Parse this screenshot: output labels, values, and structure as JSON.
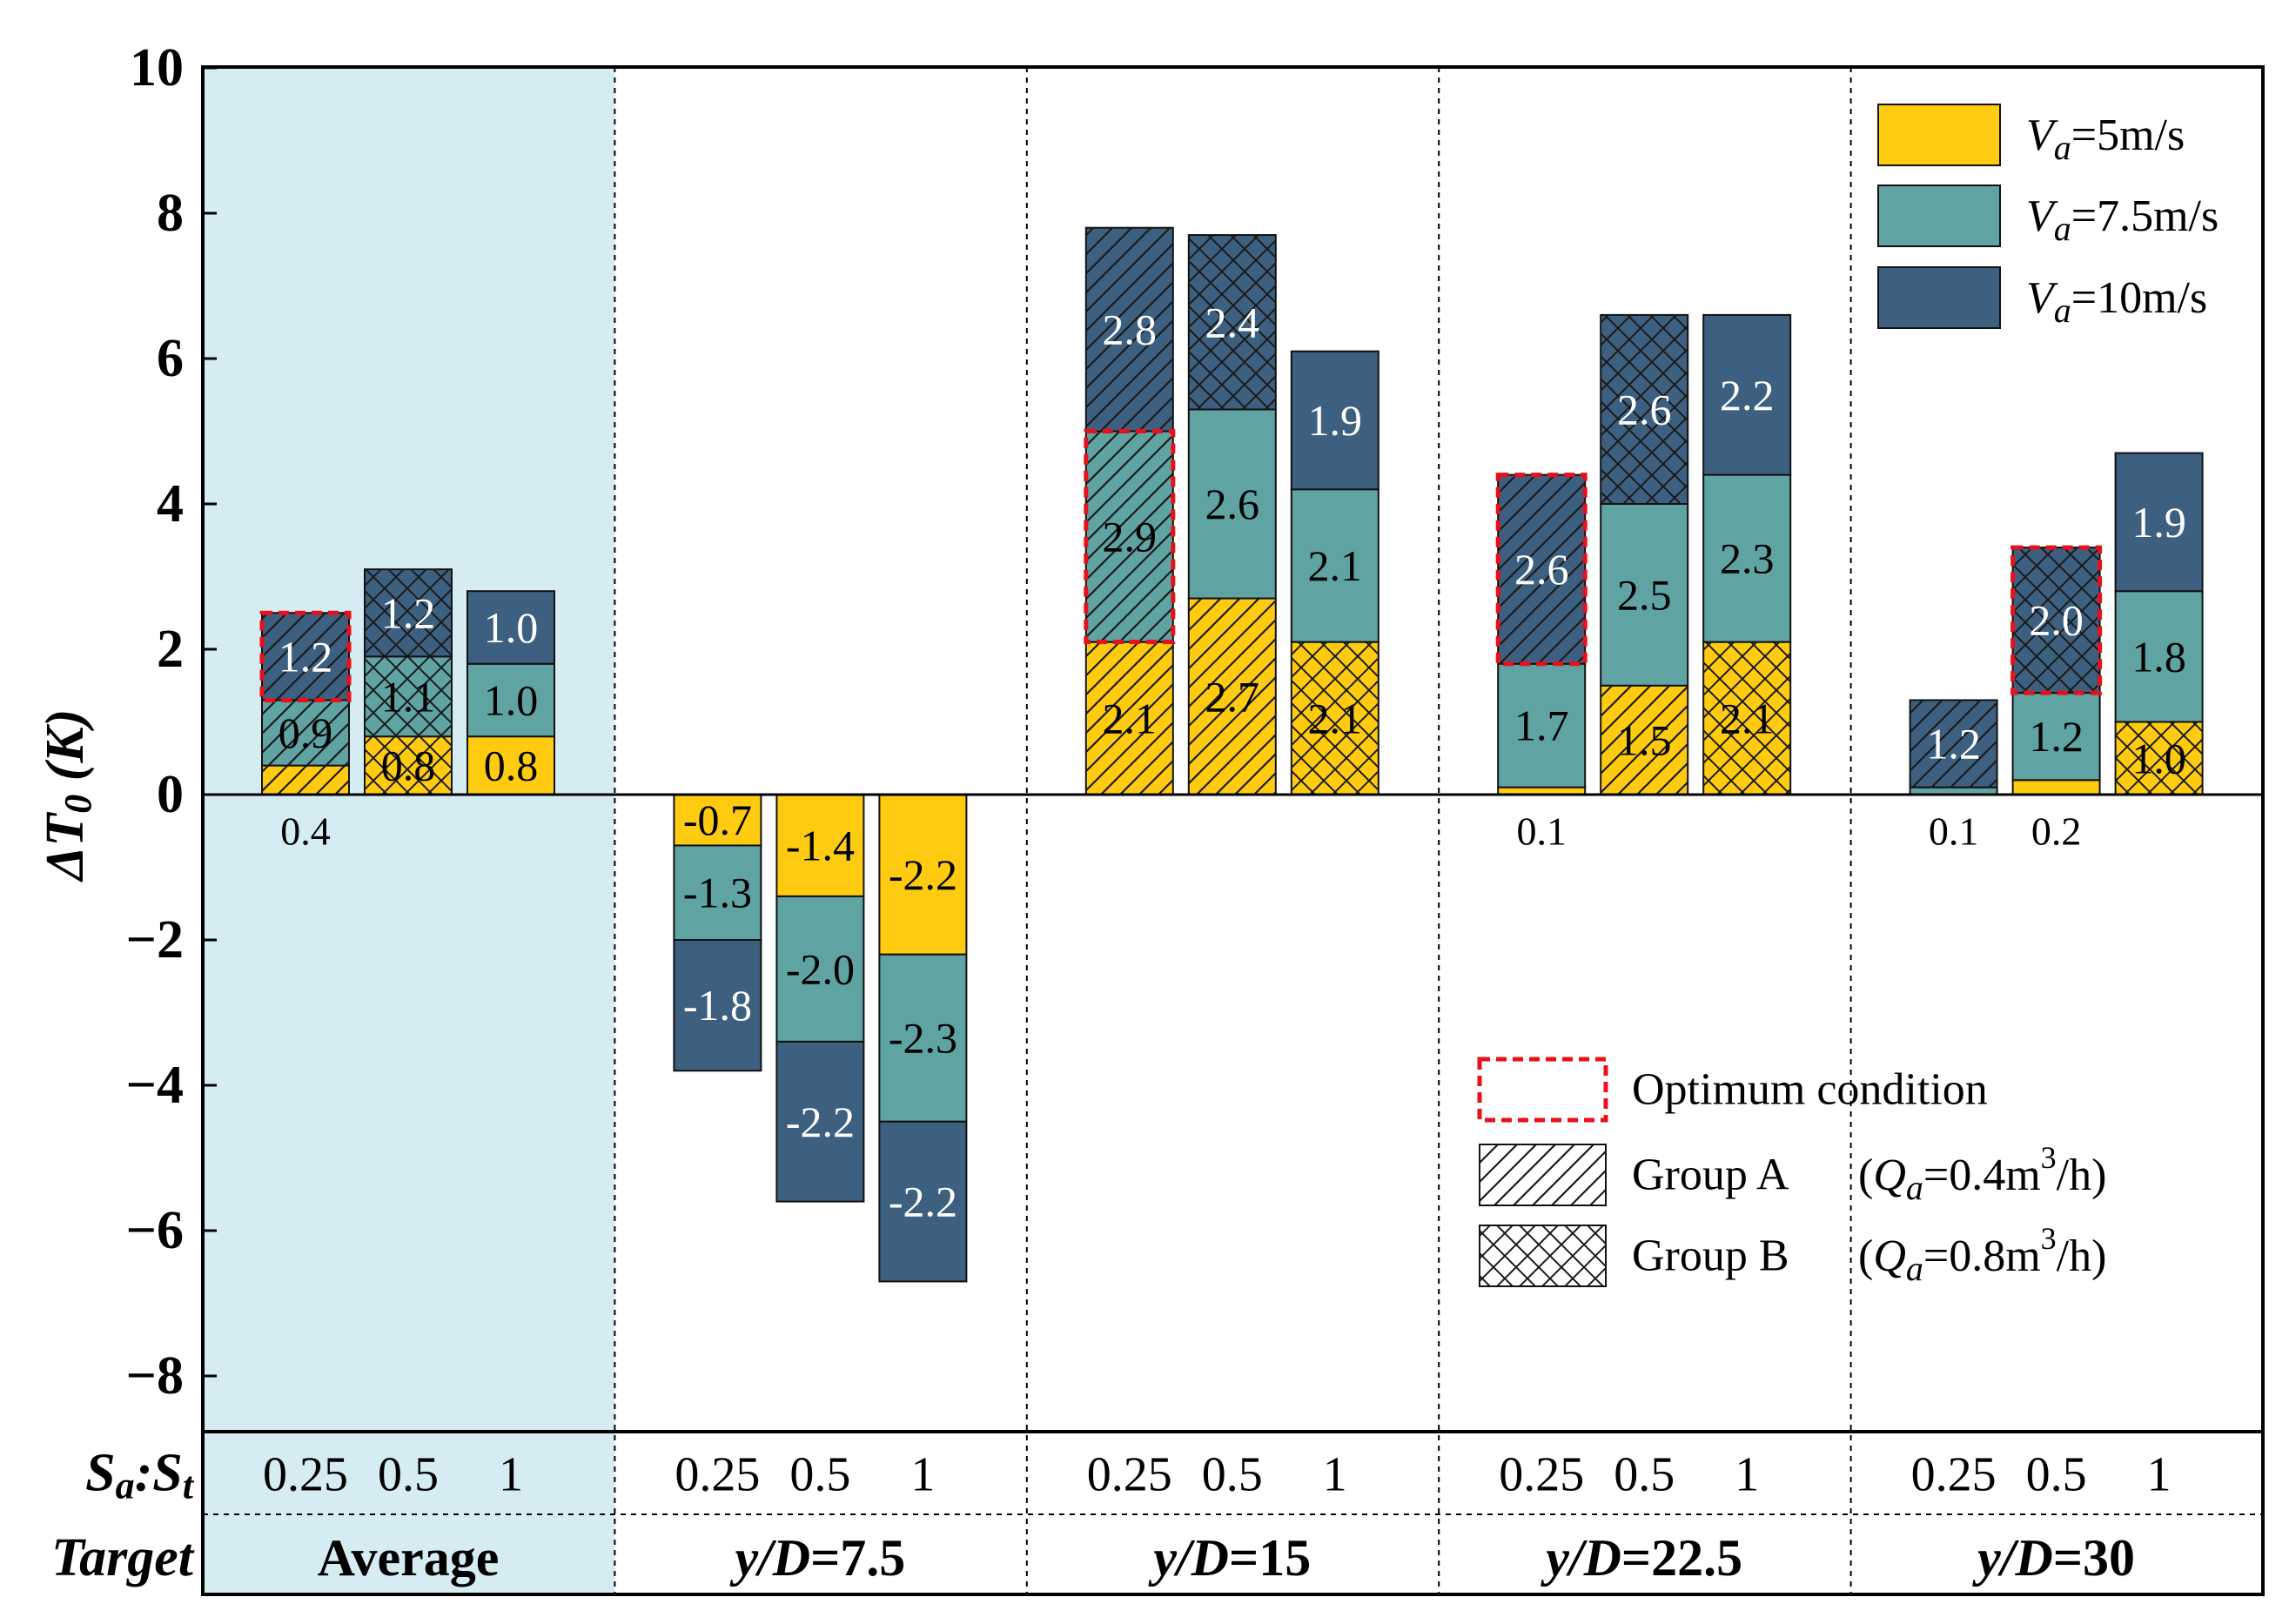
{
  "chart_data": {
    "type": "bar",
    "subtype": "stacked",
    "ylabel": "ΔT0 (K)",
    "ylabel_main": "ΔT",
    "ylabel_sub": "0",
    "ylabel_unit": " (K)",
    "ylim": [
      -8.8,
      10
    ],
    "yticks": [
      10,
      8,
      6,
      4,
      2,
      0,
      -2,
      -4,
      -6,
      -8
    ],
    "ytick_labels": [
      "10",
      "8",
      "6",
      "4",
      "2",
      "0",
      "−2",
      "−4",
      "−6",
      "−8"
    ],
    "colors": {
      "v5": "#FFCB10",
      "v7": "#5FA3A3",
      "v10": "#3D6080",
      "highlight_bg": "#D6ECF3",
      "optimum": "#E8101A"
    },
    "rows": {
      "ratio_label_main": "S",
      "ratio_label_sub1": "a",
      "ratio_sep": ":",
      "ratio_label_sub2": "t",
      "target_label": "Target"
    },
    "series": [
      {
        "name": "Va=5m/s",
        "base": "V",
        "sub": "a",
        "rest": "=5m/s"
      },
      {
        "name": "Va=7.5m/s",
        "base": "V",
        "sub": "a",
        "rest": "=7.5m/s"
      },
      {
        "name": "Va=10m/s",
        "base": "V",
        "sub": "a",
        "rest": "=10m/s"
      }
    ],
    "legend2": {
      "optimum": "Optimum condition",
      "groupA": "Group A",
      "groupA_q": "(Qa=0.4m³/h)",
      "groupA_parts": [
        "(",
        "Q",
        "a",
        "=0.4m",
        "3",
        "/h)"
      ],
      "groupB": "Group B",
      "groupB_q": "(Qa=0.8m³/h)",
      "groupB_parts": [
        "(",
        "Q",
        "a",
        "=0.8m",
        "3",
        "/h)"
      ]
    },
    "groups": [
      {
        "name": "Average",
        "label_prefix": "",
        "label_value": "Average",
        "bars": [
          {
            "ratio": "0.25",
            "values": [
              0.4,
              0.9,
              1.2
            ],
            "labels": [
              "0.4",
              "0.9",
              "1.2"
            ],
            "pattern": "A",
            "optimum": "v10"
          },
          {
            "ratio": "0.5",
            "values": [
              0.8,
              1.1,
              1.2
            ],
            "labels": [
              "0.8",
              "1.1",
              "1.2"
            ],
            "pattern": "B",
            "optimum": ""
          },
          {
            "ratio": "1",
            "values": [
              0.8,
              1.0,
              1.0
            ],
            "labels": [
              "0.8",
              "1.0",
              "1.0"
            ],
            "pattern": "none",
            "optimum": ""
          }
        ]
      },
      {
        "name": "y/D=7.5",
        "label_prefix": "y/D",
        "label_value": "=7.5",
        "bars": [
          {
            "ratio": "0.25",
            "values": [
              -0.7,
              -1.3,
              -1.8
            ],
            "labels": [
              "-0.7",
              "-1.3",
              "-1.8"
            ],
            "pattern": "none",
            "optimum": ""
          },
          {
            "ratio": "0.5",
            "values": [
              -1.4,
              -2.0,
              -2.2
            ],
            "labels": [
              "-1.4",
              "-2.0",
              "-2.2"
            ],
            "pattern": "none",
            "optimum": ""
          },
          {
            "ratio": "1",
            "values": [
              -2.2,
              -2.3,
              -2.2
            ],
            "labels": [
              "-2.2",
              "-2.3",
              "-2.2"
            ],
            "pattern": "none",
            "optimum": ""
          }
        ]
      },
      {
        "name": "y/D=15",
        "label_prefix": "y/D",
        "label_value": "=15",
        "bars": [
          {
            "ratio": "0.25",
            "values": [
              2.1,
              2.9,
              2.8
            ],
            "labels": [
              "2.1",
              "2.9",
              "2.8"
            ],
            "pattern": "A",
            "optimum": "v7"
          },
          {
            "ratio": "0.5",
            "values": [
              2.7,
              2.6,
              2.4
            ],
            "labels": [
              "2.7",
              "2.6",
              "2.4"
            ],
            "pattern": "A5B10",
            "optimum": ""
          },
          {
            "ratio": "1",
            "values": [
              2.1,
              2.1,
              1.9
            ],
            "labels": [
              "2.1",
              "2.1",
              "1.9"
            ],
            "pattern": "B5",
            "optimum": ""
          }
        ]
      },
      {
        "name": "y/D=22.5",
        "label_prefix": "y/D",
        "label_value": "=22.5",
        "bars": [
          {
            "ratio": "0.25",
            "values": [
              0.1,
              1.7,
              2.6
            ],
            "labels": [
              "0.1",
              "1.7",
              "2.6"
            ],
            "pattern": "A10",
            "optimum": "v10"
          },
          {
            "ratio": "0.5",
            "values": [
              1.5,
              2.5,
              2.6
            ],
            "labels": [
              "1.5",
              "2.5",
              "2.6"
            ],
            "pattern": "A5B10",
            "optimum": ""
          },
          {
            "ratio": "1",
            "values": [
              2.1,
              2.3,
              2.2
            ],
            "labels": [
              "2.1",
              "2.3",
              "2.2"
            ],
            "pattern": "B5",
            "optimum": ""
          }
        ]
      },
      {
        "name": "y/D=30",
        "label_prefix": "y/D",
        "label_value": "=30",
        "bars": [
          {
            "ratio": "0.25",
            "values": [
              0.0,
              0.1,
              1.2
            ],
            "labels": [
              "",
              "0.1",
              "1.2"
            ],
            "pattern": "A10",
            "optimum": ""
          },
          {
            "ratio": "0.5",
            "values": [
              0.2,
              1.2,
              2.0
            ],
            "labels": [
              "0.2",
              "1.2",
              "2.0"
            ],
            "pattern": "B10",
            "optimum": "v10"
          },
          {
            "ratio": "1",
            "values": [
              1.0,
              1.8,
              1.9
            ],
            "labels": [
              "1.0",
              "1.8",
              "1.9"
            ],
            "pattern": "B5",
            "optimum": ""
          }
        ]
      }
    ]
  }
}
